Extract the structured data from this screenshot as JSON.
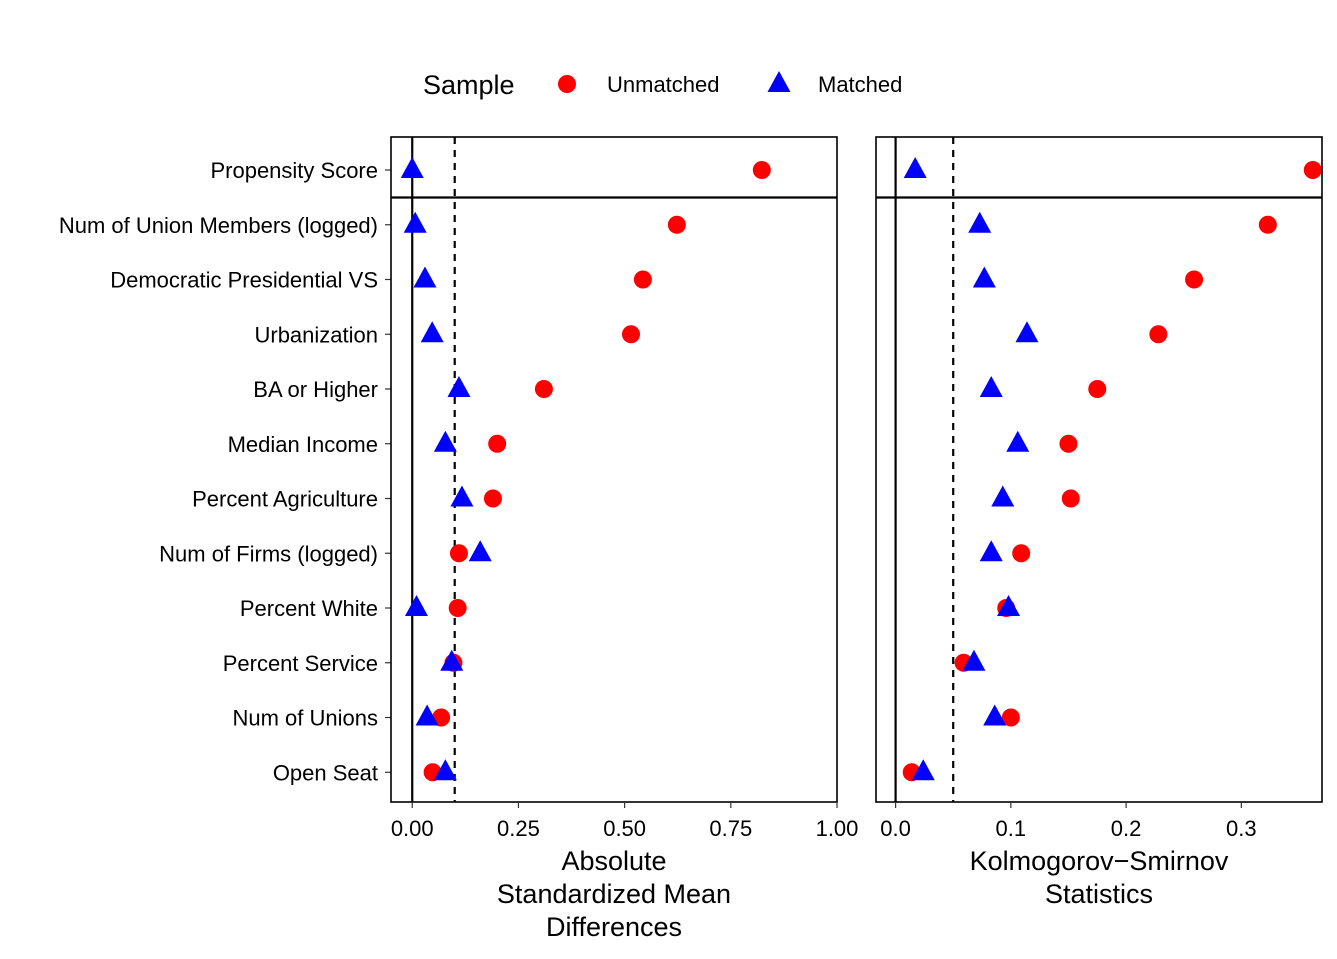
{
  "legend": {
    "title": "Sample",
    "entries": [
      {
        "label": "Unmatched",
        "shape": "circle",
        "color": "#ff0000"
      },
      {
        "label": "Matched",
        "shape": "triangle",
        "color": "#0000ff"
      }
    ]
  },
  "chart_data": [
    {
      "type": "scatter",
      "title": "",
      "xlabel": "Absolute\nStandardized Mean\nDifferences",
      "ylabel": "",
      "xlim": [
        -0.05,
        1.0
      ],
      "xticks": [
        0.0,
        0.25,
        0.5,
        0.75,
        1.0
      ],
      "xtick_labels": [
        "0.00",
        "0.25",
        "0.50",
        "0.75",
        "1.00"
      ],
      "threshold": 0.1,
      "grid": false,
      "categories": [
        "Propensity Score",
        "Num of Union Members (logged)",
        "Democratic Presidential VS",
        "Urbanization",
        "BA or Higher",
        "Median Income",
        "Percent Agriculture",
        "Num of Firms (logged)",
        "Percent White",
        "Percent Service",
        "Num of Unions",
        "Open Seat"
      ],
      "series": [
        {
          "name": "Unmatched",
          "values": [
            0.823,
            0.623,
            0.543,
            0.515,
            0.31,
            0.2,
            0.19,
            0.11,
            0.107,
            0.097,
            0.068,
            0.048
          ]
        },
        {
          "name": "Matched",
          "values": [
            0.0,
            0.007,
            0.03,
            0.047,
            0.11,
            0.078,
            0.117,
            0.16,
            0.01,
            0.093,
            0.035,
            0.078
          ]
        }
      ]
    },
    {
      "type": "scatter",
      "title": "",
      "xlabel": "Kolmogorov−Smirnov\nStatistics",
      "ylabel": "",
      "xlim": [
        -0.017,
        0.37
      ],
      "xticks": [
        0.0,
        0.1,
        0.2,
        0.3
      ],
      "xtick_labels": [
        "0.0",
        "0.1",
        "0.2",
        "0.3"
      ],
      "threshold": 0.05,
      "grid": false,
      "categories": [
        "Propensity Score",
        "Num of Union Members (logged)",
        "Democratic Presidential VS",
        "Urbanization",
        "BA or Higher",
        "Median Income",
        "Percent Agriculture",
        "Num of Firms (logged)",
        "Percent White",
        "Percent Service",
        "Num of Unions",
        "Open Seat"
      ],
      "series": [
        {
          "name": "Unmatched",
          "values": [
            0.362,
            0.323,
            0.259,
            0.228,
            0.175,
            0.15,
            0.152,
            0.109,
            0.096,
            0.059,
            0.1,
            0.014
          ]
        },
        {
          "name": "Matched",
          "values": [
            0.017,
            0.073,
            0.077,
            0.114,
            0.083,
            0.106,
            0.093,
            0.083,
            0.098,
            0.068,
            0.086,
            0.024
          ]
        }
      ]
    }
  ]
}
